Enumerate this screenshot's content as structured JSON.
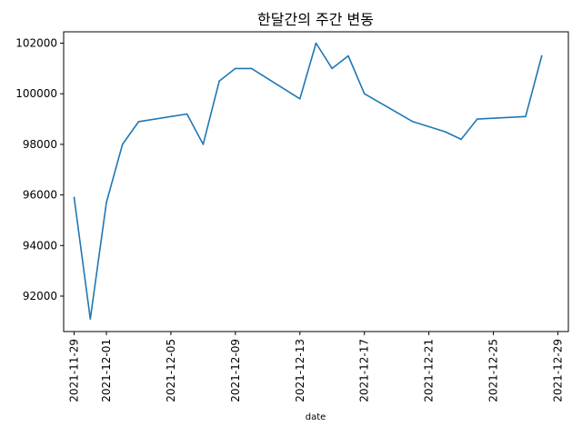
{
  "chart_data": {
    "type": "line",
    "title": "한달간의 주간 변동",
    "xlabel": "date",
    "ylabel": "",
    "x_tick_labels": [
      "2021-11-29",
      "2021-12-01",
      "2021-12-05",
      "2021-12-09",
      "2021-12-13",
      "2021-12-17",
      "2021-12-21",
      "2021-12-25",
      "2021-12-29"
    ],
    "y_tick_labels": [
      "92000",
      "94000",
      "96000",
      "98000",
      "100000",
      "102000"
    ],
    "xlim": [
      "2021-11-28",
      "2021-12-30"
    ],
    "ylim": [
      90600,
      102450
    ],
    "grid": false,
    "legend": false,
    "series_color": "#1f77b4",
    "x": [
      "2021-11-29",
      "2021-11-30",
      "2021-12-01",
      "2021-12-02",
      "2021-12-03",
      "2021-12-06",
      "2021-12-07",
      "2021-12-08",
      "2021-12-09",
      "2021-12-10",
      "2021-12-13",
      "2021-12-14",
      "2021-12-15",
      "2021-12-16",
      "2021-12-17",
      "2021-12-20",
      "2021-12-22",
      "2021-12-23",
      "2021-12-24",
      "2021-12-27",
      "2021-12-28"
    ],
    "y": [
      95900,
      91100,
      95700,
      98000,
      98900,
      99200,
      98000,
      100500,
      101000,
      101000,
      99800,
      102000,
      101000,
      101500,
      100000,
      98900,
      98500,
      98200,
      99000,
      99100,
      101500
    ]
  }
}
